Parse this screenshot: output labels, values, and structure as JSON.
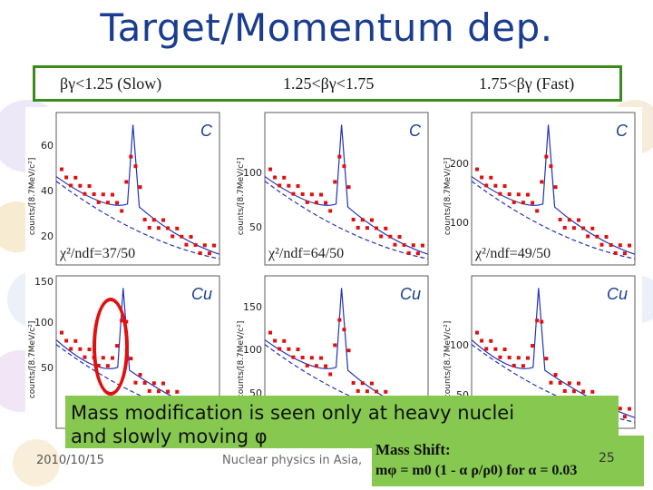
{
  "title": "Target/Momentum dep.",
  "bins": {
    "slow": "βγ<1.25 (Slow)",
    "mid": "1.25<βγ<1.75",
    "fast": "1.75<βγ (Fast)"
  },
  "ylabel": "counts/[8.7MeV/c²]",
  "panels": [
    {
      "id": "c-slow",
      "target": "C",
      "ticks": [
        "60",
        "40",
        "20"
      ],
      "chi2": "χ²/ndf=37/50"
    },
    {
      "id": "c-mid",
      "target": "C",
      "ticks": [
        "100",
        "50"
      ],
      "chi2": "χ²/ndf=64/50"
    },
    {
      "id": "c-fast",
      "target": "C",
      "ticks": [
        "200",
        "100"
      ],
      "chi2": "χ²/ndf=49/50"
    },
    {
      "id": "cu-slow",
      "target": "Cu",
      "ticks": [
        "150",
        "100",
        "50"
      ],
      "chi2": ""
    },
    {
      "id": "cu-mid",
      "target": "Cu",
      "ticks": [
        "150",
        "100",
        "50"
      ],
      "chi2": ""
    },
    {
      "id": "cu-fast",
      "target": "Cu",
      "ticks": [
        "100",
        "50"
      ],
      "chi2": ""
    }
  ],
  "callout": {
    "text_line1": "Mass modification is seen only at heavy nuclei",
    "text_line2": "and slowly moving φ"
  },
  "mass_shift": {
    "title": "Mass Shift:",
    "formula": "mφ = m0 (1 - α ρ/ρ0)  for α = 0.03"
  },
  "footer": {
    "date": "2010/10/15",
    "middle": "Nuclear physics in Asia,",
    "page": "25"
  },
  "colors": {
    "title": "#1a3d8f",
    "box_border": "#3a8a1e",
    "banner": "#86c850",
    "data_points": "#e01010",
    "fit_line": "#2233bb",
    "background_line": "#2233bb"
  }
}
